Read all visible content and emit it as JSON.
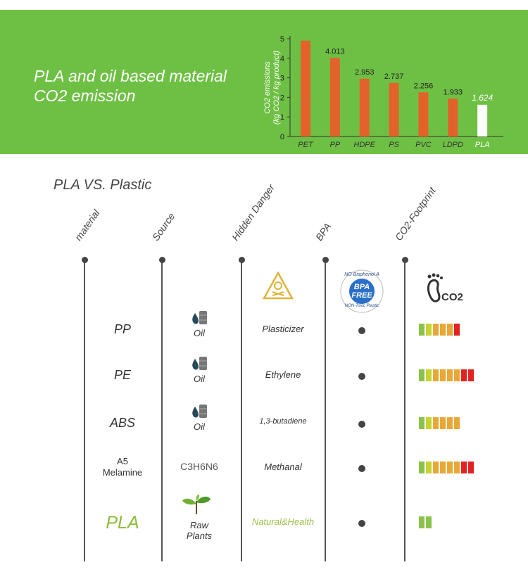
{
  "banner": {
    "title_line1": "PLA and oil based material",
    "title_line2": "CO2 emission",
    "bg_color": "#6ec044"
  },
  "chart_data": {
    "type": "bar",
    "ylabel": "CO2 emissions (kg CO2 / kg product)",
    "ylim": [
      0,
      5
    ],
    "yticks": [
      0,
      1,
      2,
      3,
      4,
      5
    ],
    "categories": [
      "PET",
      "PP",
      "HDPE",
      "PS",
      "PVC",
      "LDPD",
      "PLA"
    ],
    "values": [
      4.9,
      4.013,
      2.953,
      2.737,
      2.256,
      1.933,
      1.624
    ],
    "labels": [
      "",
      "4.013",
      "2.953",
      "2.737",
      "2.256",
      "1.933",
      "1.624"
    ],
    "bar_colors": [
      "#e3622a",
      "#e3622a",
      "#e3622a",
      "#e3622a",
      "#e3622a",
      "#e3622a",
      "#ffffff"
    ]
  },
  "comparison": {
    "title": "PLA VS. Plastic",
    "headers": [
      "material",
      "Source",
      "Hidden Danger",
      "BPA",
      "CO2-Footprint"
    ],
    "bpa_badge": {
      "top": "NO Bisphenol A",
      "center1": "BPA",
      "center2": "FREE",
      "bottom": "NON-Toxic Plastic"
    },
    "footprint_label": "CO2",
    "rows": [
      {
        "material": "PP",
        "source": "Oil",
        "danger": "Plasticizer",
        "footprint": [
          "#8bc34a",
          "#c5d334",
          "#e8a838",
          "#e8a838",
          "#e8a838",
          "#e32222"
        ]
      },
      {
        "material": "PE",
        "source": "Oil",
        "danger": "Ethylene",
        "footprint": [
          "#8bc34a",
          "#c5d334",
          "#e8a838",
          "#e8a838",
          "#e8a838",
          "#e8a838",
          "#e32222",
          "#e32222"
        ]
      },
      {
        "material": "ABS",
        "source": "Oil",
        "danger": "1,3-butadiene",
        "footprint": [
          "#8bc34a",
          "#c5d334",
          "#e8a838",
          "#e8a838",
          "#e8a838",
          "#e8a838"
        ]
      },
      {
        "material": "A5 Melamine",
        "source": "C3H6N6",
        "danger": "Methanal",
        "footprint": [
          "#8bc34a",
          "#c5d334",
          "#e8a838",
          "#e8a838",
          "#e8a838",
          "#e8a838",
          "#e32222",
          "#e32222"
        ]
      },
      {
        "material": "PLA",
        "source": "Raw Plants",
        "danger": "Natural&Health",
        "footprint": [
          "#8bc34a",
          "#8bc34a"
        ]
      }
    ]
  }
}
